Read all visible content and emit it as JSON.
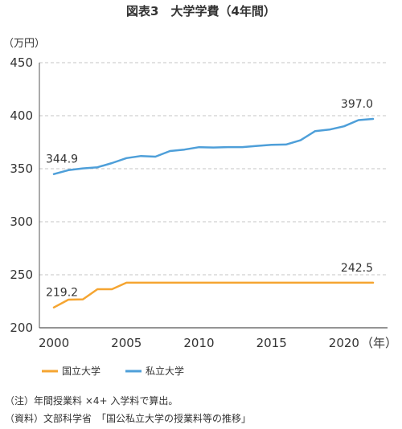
{
  "chart_data": {
    "type": "line",
    "title": "図表3　大学学費（4年間）",
    "ylabel": "（万円）",
    "xlabel": "（年）",
    "ylim": [
      200,
      450
    ],
    "yticks": [
      200,
      250,
      300,
      350,
      400,
      450
    ],
    "xlim": [
      1999,
      2023
    ],
    "xticks": [
      2000,
      2005,
      2010,
      2015,
      2020
    ],
    "grid": true,
    "legend_position": "bottom-left",
    "x": [
      2000,
      2001,
      2002,
      2003,
      2004,
      2005,
      2006,
      2007,
      2008,
      2009,
      2010,
      2011,
      2012,
      2013,
      2014,
      2015,
      2016,
      2017,
      2018,
      2019,
      2020,
      2021,
      2022
    ],
    "series": [
      {
        "name": "国立大学",
        "color": "#F5A531",
        "values": [
          219.2,
          226.5,
          226.8,
          236.4,
          236.4,
          242.5,
          242.5,
          242.5,
          242.5,
          242.5,
          242.5,
          242.5,
          242.5,
          242.5,
          242.5,
          242.5,
          242.5,
          242.5,
          242.5,
          242.5,
          242.5,
          242.5,
          242.5
        ],
        "labels": [
          {
            "x": 2000,
            "text": "219.2"
          },
          {
            "x": 2022,
            "text": "242.5"
          }
        ]
      },
      {
        "name": "私立大学",
        "color": "#4E9FD9",
        "values": [
          344.9,
          348.6,
          350.3,
          351.4,
          355.3,
          360.0,
          362.0,
          361.4,
          366.7,
          368.0,
          370.3,
          370.0,
          370.4,
          370.4,
          371.5,
          372.6,
          372.8,
          376.8,
          385.4,
          386.9,
          390.0,
          395.8,
          397.0
        ],
        "labels": [
          {
            "x": 2000,
            "text": "344.9"
          },
          {
            "x": 2022,
            "text": "397.0"
          }
        ]
      }
    ]
  },
  "notes": [
    "（注）年間授業料 ×4+ 入学料で算出。",
    "（資料）文部科学省　「国公私立大学の授業料等の推移」"
  ]
}
